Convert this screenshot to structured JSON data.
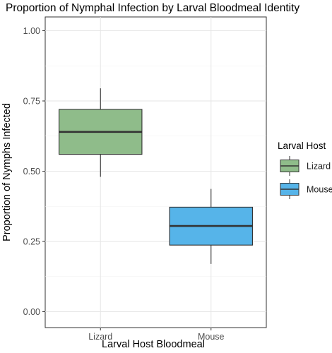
{
  "chart_data": {
    "type": "boxplot",
    "title": "Proportion of Nymphal Infection by Larval Bloodmeal Identity",
    "xlabel": "Larval Host Bloodmeal",
    "ylabel": "Proportion of Nymphs Infected",
    "ylim": [
      0,
      1.05
    ],
    "yticks": [
      "0.00",
      "0.25",
      "0.50",
      "0.75",
      "1.00"
    ],
    "grid": true,
    "legend": {
      "title": "Larval Host",
      "placement": "right",
      "items": [
        {
          "label": "Lizard",
          "color": "#8fbc8a"
        },
        {
          "label": "Mouse",
          "color": "#56b4e9"
        }
      ]
    },
    "categories": [
      "Lizard",
      "Mouse"
    ],
    "boxes": [
      {
        "name": "Lizard",
        "color": "#8fbc8a",
        "whisker_low": 0.48,
        "q1": 0.56,
        "median": 0.64,
        "q3": 0.72,
        "whisker_high": 0.795
      },
      {
        "name": "Mouse",
        "color": "#56b4e9",
        "whisker_low": 0.17,
        "q1": 0.237,
        "median": 0.305,
        "q3": 0.372,
        "whisker_high": 0.437
      }
    ]
  }
}
